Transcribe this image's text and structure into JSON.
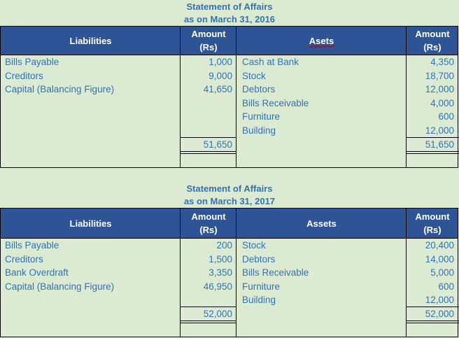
{
  "colors": {
    "header_bg": "#2f5496",
    "text": "#2e74b5",
    "background": "#dcead2"
  },
  "statements": [
    {
      "title": "Statement of Affairs",
      "subtitle": "as on March 31, 2016",
      "headers": {
        "liabilities": "Liabilities",
        "amount": "Amount",
        "unit": "(Rs)",
        "assets": "Asets"
      },
      "liabilities": [
        {
          "name": "Bills Payable",
          "amount": "1,000"
        },
        {
          "name": "Creditors",
          "amount": "9,000"
        },
        {
          "name": "Capital (Balancing Figure)",
          "amount": "41,650"
        }
      ],
      "assets": [
        {
          "name": "Cash at Bank",
          "amount": "4,350"
        },
        {
          "name": "Stock",
          "amount": "18,700"
        },
        {
          "name": "Debtors",
          "amount": "12,000"
        },
        {
          "name": "Bills Receivable",
          "amount": "4,000"
        },
        {
          "name": "Furniture",
          "amount": "600"
        },
        {
          "name": "Building",
          "amount": "12,000"
        }
      ],
      "total_liabilities": "51,650",
      "total_assets": "51,650"
    },
    {
      "title": "Statement of Affairs",
      "subtitle": "as on March 31, 2017",
      "headers": {
        "liabilities": "Liabilities",
        "amount": "Amount",
        "unit": "(Rs)",
        "assets": "Assets"
      },
      "liabilities": [
        {
          "name": "Bills Payable",
          "amount": "200"
        },
        {
          "name": "Creditors",
          "amount": "1,500"
        },
        {
          "name": "Bank Overdraft",
          "amount": "3,350"
        },
        {
          "name": "Capital (Balancing Figure)",
          "amount": "46,950"
        }
      ],
      "assets": [
        {
          "name": "Stock",
          "amount": "20,400"
        },
        {
          "name": "Debtors",
          "amount": "14,000"
        },
        {
          "name": "Bills Receivable",
          "amount": "5,000"
        },
        {
          "name": "Furniture",
          "amount": "600"
        },
        {
          "name": "Building",
          "amount": "12,000"
        }
      ],
      "total_liabilities": "52,000",
      "total_assets": "52,000"
    }
  ]
}
